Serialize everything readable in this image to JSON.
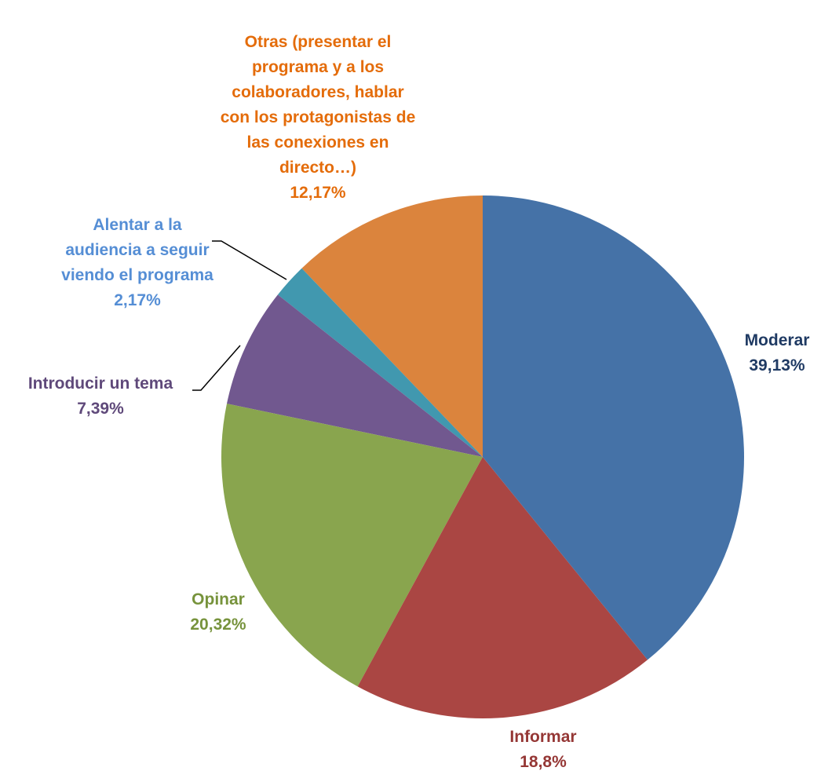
{
  "chart_data": {
    "type": "pie",
    "categories": [
      "Moderar",
      "Informar",
      "Opinar",
      "Introducir un tema",
      "Alentar a la audiencia a seguir viendo el programa",
      "Otras (presentar el programa y a los colaboradores, hablar con los protagonistas de las conexiones en directo…)"
    ],
    "values": [
      39.13,
      18.8,
      20.32,
      7.39,
      2.17,
      12.17
    ],
    "value_labels": [
      "39,13%",
      "18,8%",
      "20,32%",
      "7,39%",
      "2,17%",
      "12,17%"
    ],
    "colors": [
      "#4572a7",
      "#aa4643",
      "#89a54e",
      "#71588f",
      "#4198af",
      "#db843d"
    ],
    "label_colors": [
      "#1f3a63",
      "#953735",
      "#77933c",
      "#5f497a",
      "#558ed5",
      "#e46c0a"
    ]
  }
}
